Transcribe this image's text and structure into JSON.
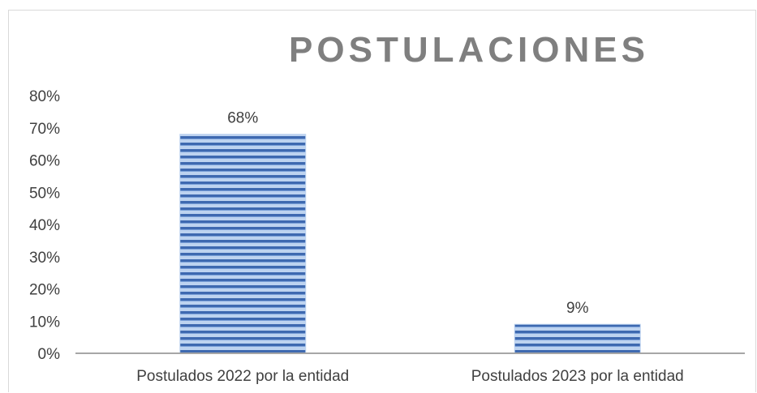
{
  "chart_data": {
    "type": "bar",
    "title": "POSTULACIONES",
    "categories": [
      "Postulados 2022 por la entidad",
      "Postulados 2023 por la entidad"
    ],
    "values": [
      68,
      9
    ],
    "data_labels": [
      "68%",
      "9%"
    ],
    "y_ticks": [
      "0%",
      "10%",
      "20%",
      "30%",
      "40%",
      "50%",
      "60%",
      "70%",
      "80%"
    ],
    "ylim": [
      0,
      80
    ],
    "grid": false,
    "legend": "none",
    "colors": {
      "bar_light": "#bdd3f0",
      "bar_dark": "#3e69b0",
      "title": "#7f7f7f",
      "axis": "#a6a6a6",
      "text": "#404040"
    }
  }
}
